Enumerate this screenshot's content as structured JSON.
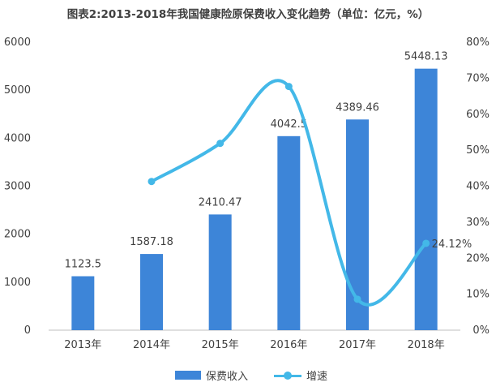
{
  "title": "图表2:2013-2018年我国健康险原保费收入变化趋势（单位：亿元，%）",
  "chart_data": {
    "type": "bar",
    "categories": [
      "2013年",
      "2014年",
      "2015年",
      "2016年",
      "2017年",
      "2018年"
    ],
    "series": [
      {
        "name": "保费收入",
        "type": "bar",
        "axis": "left",
        "values": [
          1123.5,
          1587.18,
          2410.47,
          4042.5,
          4389.46,
          5448.13
        ],
        "labels": [
          "1123.5",
          "1587.18",
          "2410.47",
          "4042.5",
          "4389.46",
          "5448.13"
        ],
        "color": "#3d85d8"
      },
      {
        "name": "增速",
        "type": "line",
        "axis": "right",
        "smooth": true,
        "values": [
          null,
          41.3,
          51.9,
          67.7,
          8.6,
          24.12
        ],
        "labels": [
          null,
          null,
          null,
          null,
          null,
          "24.12%"
        ],
        "color": "#43b8e8"
      }
    ],
    "y_left": {
      "min": 0,
      "max": 6000,
      "ticks": [
        "0",
        "1000",
        "2000",
        "3000",
        "4000",
        "5000",
        "6000"
      ]
    },
    "y_right": {
      "min": 0,
      "max": 80,
      "ticks": [
        "0%",
        "10%",
        "20%",
        "30%",
        "40%",
        "50%",
        "60%",
        "70%",
        "80%"
      ]
    },
    "grid": false,
    "legend_position": "bottom"
  }
}
